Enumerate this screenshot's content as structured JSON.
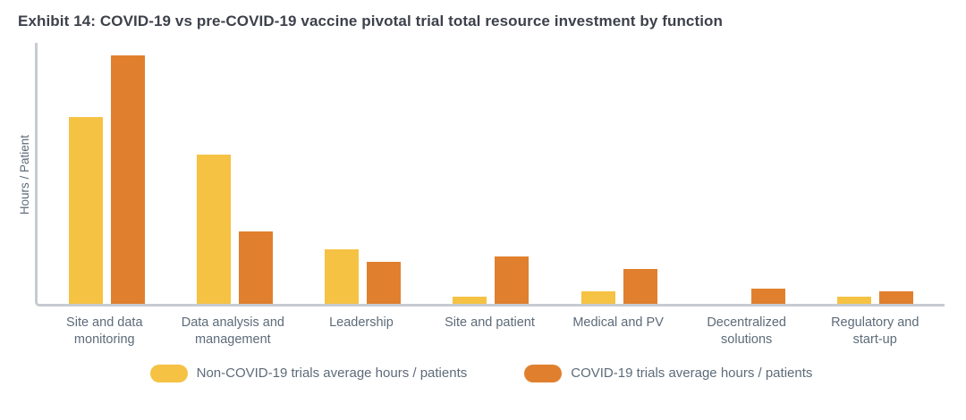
{
  "chart_data": {
    "type": "bar",
    "title": "Exhibit 14: COVID-19 vs pre-COVID-19 vaccine pivotal trial total resource investment by function",
    "xlabel": "",
    "ylabel": "Hours / Patient",
    "ylim": [
      0,
      105
    ],
    "grid": false,
    "legend_position": "bottom",
    "y_tick_labels": [],
    "categories": [
      "Site and data monitoring",
      "Data analysis and management",
      "Leadership",
      "Site and patient",
      "Medical and PV",
      "Decentralized solutions",
      "Regulatory and start-up"
    ],
    "series": [
      {
        "name": "Non-COVID-19 trials average hours / patients",
        "color": "#f5c244",
        "values": [
          75,
          60,
          22,
          3,
          5,
          0,
          3
        ]
      },
      {
        "name": "COVID-19 trials average hours / patients",
        "color": "#e0802e",
        "values": [
          100,
          29,
          17,
          19,
          14,
          6,
          5
        ]
      }
    ]
  },
  "colors": {
    "title_text": "#3d414b",
    "axis_line": "#c6cbd1",
    "label_text": "#5d6b79"
  }
}
